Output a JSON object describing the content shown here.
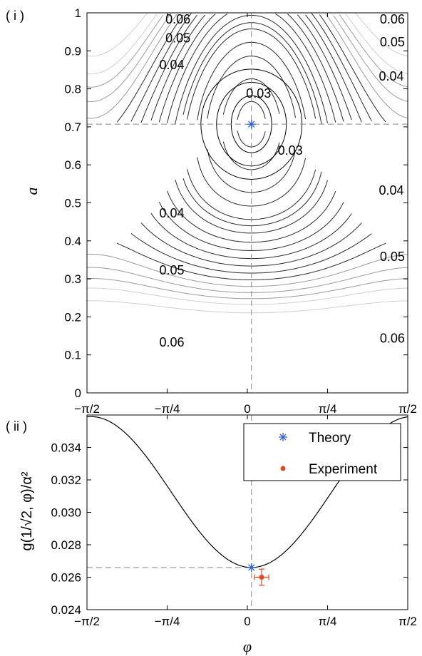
{
  "chart_data": [
    {
      "type": "contour",
      "panel_label": "( i )",
      "ylabel": "a",
      "xlim": [
        -1.5708,
        1.5708
      ],
      "ylim": [
        0,
        1
      ],
      "xticks": [
        {
          "value": -1.5708,
          "label": "−π/2"
        },
        {
          "value": -0.7854,
          "label": "−π/4"
        },
        {
          "value": 0,
          "label": "0"
        },
        {
          "value": 0.7854,
          "label": "π/4"
        },
        {
          "value": 1.5708,
          "label": "π/2"
        }
      ],
      "yticks": [
        {
          "value": 0,
          "label": "0"
        },
        {
          "value": 0.1,
          "label": "0.1"
        },
        {
          "value": 0.2,
          "label": "0.2"
        },
        {
          "value": 0.3,
          "label": "0.3"
        },
        {
          "value": 0.4,
          "label": "0.4"
        },
        {
          "value": 0.5,
          "label": "0.5"
        },
        {
          "value": 0.6,
          "label": "0.6"
        },
        {
          "value": 0.7,
          "label": "0.7"
        },
        {
          "value": 0.8,
          "label": "0.8"
        },
        {
          "value": 0.9,
          "label": "0.9"
        },
        {
          "value": 1,
          "label": "1"
        }
      ],
      "guide_lines": {
        "x": 0.04,
        "y": 0.707
      },
      "theory_point": {
        "x": 0.04,
        "y": 0.707
      },
      "contour_labels": [
        {
          "text": "0.06",
          "x": -0.68,
          "y": 0.985
        },
        {
          "text": "0.06",
          "x": 1.42,
          "y": 0.985
        },
        {
          "text": "0.05",
          "x": -0.68,
          "y": 0.935
        },
        {
          "text": "0.05",
          "x": 1.42,
          "y": 0.925
        },
        {
          "text": "0.04",
          "x": -0.74,
          "y": 0.865
        },
        {
          "text": "0.04",
          "x": 1.41,
          "y": 0.835
        },
        {
          "text": "0.03",
          "x": 0.11,
          "y": 0.79
        },
        {
          "text": "0.03",
          "x": 0.42,
          "y": 0.64
        },
        {
          "text": "0.04",
          "x": 1.41,
          "y": 0.535
        },
        {
          "text": "0.04",
          "x": -0.74,
          "y": 0.475
        },
        {
          "text": "0.05",
          "x": 1.42,
          "y": 0.36
        },
        {
          "text": "0.05",
          "x": -0.74,
          "y": 0.325
        },
        {
          "text": "0.06",
          "x": -0.74,
          "y": 0.135
        },
        {
          "text": "0.06",
          "x": 1.42,
          "y": 0.145
        }
      ],
      "contour_levels": [
        0.029,
        0.0305,
        0.033,
        0.035,
        0.0373,
        0.0385,
        0.04,
        0.042,
        0.044,
        0.046,
        0.048,
        0.05,
        0.052,
        0.054,
        0.056,
        0.058,
        0.06,
        0.063
      ]
    },
    {
      "type": "line",
      "panel_label": "( ii )",
      "ylabel": "g(1/√2, φ)/α²",
      "xlabel": "φ",
      "xlim": [
        -1.5708,
        1.5708
      ],
      "ylim": [
        0.024,
        0.036
      ],
      "xticks": [
        {
          "value": -1.5708,
          "label": "−π/2"
        },
        {
          "value": -0.7854,
          "label": "−π/4"
        },
        {
          "value": 0,
          "label": "0"
        },
        {
          "value": 0.7854,
          "label": "π/4"
        },
        {
          "value": 1.5708,
          "label": "π/2"
        }
      ],
      "yticks": [
        {
          "value": 0.024,
          "label": "0.024"
        },
        {
          "value": 0.026,
          "label": "0.026"
        },
        {
          "value": 0.028,
          "label": "0.028"
        },
        {
          "value": 0.03,
          "label": "0.030"
        },
        {
          "value": 0.032,
          "label": "0.032"
        },
        {
          "value": 0.034,
          "label": "0.034"
        }
      ],
      "curve": {
        "min_x": 0.04,
        "min_y": 0.0266,
        "max_y": 0.0359
      },
      "guide_lines": {
        "x": 0.04,
        "y": 0.0266
      },
      "series": [
        {
          "name": "Theory",
          "x": 0.04,
          "y": 0.0266,
          "color": "#2f5fe0",
          "marker": "asterisk"
        },
        {
          "name": "Experiment",
          "x": 0.14,
          "y": 0.026,
          "x_err": 0.07,
          "y_err": 0.0005,
          "color": "#e0481e",
          "marker": "dot"
        }
      ],
      "legend": "top-right"
    }
  ]
}
